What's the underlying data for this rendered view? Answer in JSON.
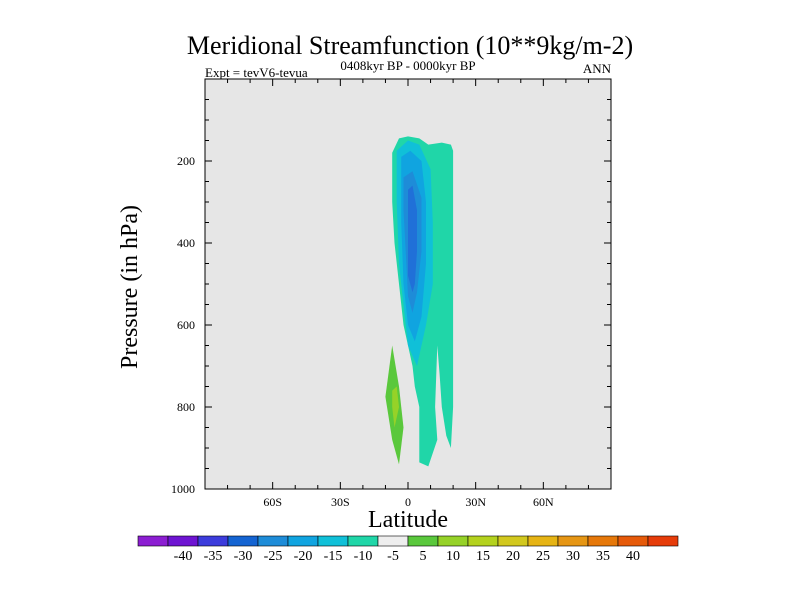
{
  "chart_data": {
    "type": "contour",
    "title": "Meridional Streamfunction (10**9kg/m-2)",
    "left_string": "Expt = tevV6-tevua",
    "center_string": "0408kyr BP - 0000kyr BP",
    "right_string": "ANN",
    "xlabel": "Latitude",
    "ylabel": "Pressure (in hPa)",
    "x_ticks": [
      {
        "value": -60,
        "label": "60S"
      },
      {
        "value": -30,
        "label": "30S"
      },
      {
        "value": 0,
        "label": "0"
      },
      {
        "value": 30,
        "label": "30N"
      },
      {
        "value": 60,
        "label": "60N"
      }
    ],
    "xlim": [
      -90,
      90
    ],
    "y_ticks": [
      {
        "value": 200,
        "label": "200"
      },
      {
        "value": 400,
        "label": "400"
      },
      {
        "value": 600,
        "label": "600"
      },
      {
        "value": 800,
        "label": "800"
      },
      {
        "value": 1000,
        "label": "1000"
      }
    ],
    "ylim": [
      1000,
      0
    ],
    "background_color": "#e6e6e6",
    "regions": [
      {
        "level": -5,
        "color": "#20d6a8",
        "points": [
          [
            -7,
            180
          ],
          [
            -4,
            145
          ],
          [
            0,
            140
          ],
          [
            5,
            145
          ],
          [
            9,
            160
          ],
          [
            15,
            155
          ],
          [
            19,
            160
          ],
          [
            20,
            175
          ],
          [
            20,
            300
          ],
          [
            20,
            500
          ],
          [
            20,
            650
          ],
          [
            20,
            800
          ],
          [
            19,
            900
          ],
          [
            17,
            870
          ],
          [
            15,
            800
          ],
          [
            14,
            720
          ],
          [
            13,
            650
          ],
          [
            12,
            800
          ],
          [
            13,
            880
          ],
          [
            9,
            945
          ],
          [
            5,
            935
          ],
          [
            5,
            800
          ],
          [
            3,
            750
          ],
          [
            2,
            700
          ],
          [
            0,
            650
          ],
          [
            -2,
            600
          ],
          [
            -4,
            500
          ],
          [
            -6,
            400
          ],
          [
            -7,
            300
          ]
        ]
      },
      {
        "level": -10,
        "color": "#10c0d8",
        "points": [
          [
            -5,
            175
          ],
          [
            0,
            150
          ],
          [
            5,
            160
          ],
          [
            10,
            220
          ],
          [
            11,
            350
          ],
          [
            11,
            500
          ],
          [
            8,
            600
          ],
          [
            4,
            700
          ],
          [
            0,
            650
          ],
          [
            -2,
            550
          ],
          [
            -4,
            450
          ],
          [
            -5,
            300
          ]
        ]
      },
      {
        "level": -15,
        "color": "#10a4e0",
        "points": [
          [
            -3,
            190
          ],
          [
            1,
            175
          ],
          [
            6,
            200
          ],
          [
            8,
            300
          ],
          [
            8,
            450
          ],
          [
            6,
            580
          ],
          [
            3,
            640
          ],
          [
            0,
            600
          ],
          [
            -2,
            500
          ],
          [
            -3,
            350
          ]
        ]
      },
      {
        "level": -20,
        "color": "#1e8cd8",
        "points": [
          [
            -2,
            240
          ],
          [
            2,
            225
          ],
          [
            6,
            290
          ],
          [
            6,
            420
          ],
          [
            4,
            520
          ],
          [
            2,
            570
          ],
          [
            0,
            530
          ],
          [
            -1,
            420
          ],
          [
            -2,
            320
          ]
        ]
      },
      {
        "level": -25,
        "color": "#2070d8",
        "points": [
          [
            0,
            270
          ],
          [
            2,
            260
          ],
          [
            4,
            320
          ],
          [
            4,
            420
          ],
          [
            3,
            500
          ],
          [
            2,
            520
          ],
          [
            0,
            480
          ],
          [
            0,
            370
          ]
        ]
      },
      {
        "level": 5,
        "color": "#5ac83c",
        "points": [
          [
            -10,
            775
          ],
          [
            -7,
            650
          ],
          [
            -4,
            750
          ],
          [
            -2,
            850
          ],
          [
            -4,
            940
          ],
          [
            -7,
            880
          ]
        ]
      },
      {
        "level": 10,
        "color": "#96d228",
        "points": [
          [
            -7,
            760
          ],
          [
            -5,
            750
          ],
          [
            -4,
            800
          ],
          [
            -6,
            850
          ],
          [
            -7,
            800
          ]
        ]
      }
    ],
    "colorbar": {
      "colors": [
        "#8c1ed2",
        "#6e14d2",
        "#3c3cdc",
        "#1464d2",
        "#1e8cd8",
        "#10a4e0",
        "#10c0d8",
        "#20d6a8",
        "#eeeeee",
        "#5ac83c",
        "#96d228",
        "#b4d21e",
        "#d2c81e",
        "#e6b414",
        "#e69614",
        "#e6780a",
        "#e65a0a",
        "#e63c0a"
      ],
      "labels": [
        "-40",
        "-35",
        "-30",
        "-25",
        "-20",
        "-15",
        "-10",
        "-5",
        "5",
        "10",
        "15",
        "20",
        "25",
        "30",
        "35",
        "40"
      ]
    }
  }
}
